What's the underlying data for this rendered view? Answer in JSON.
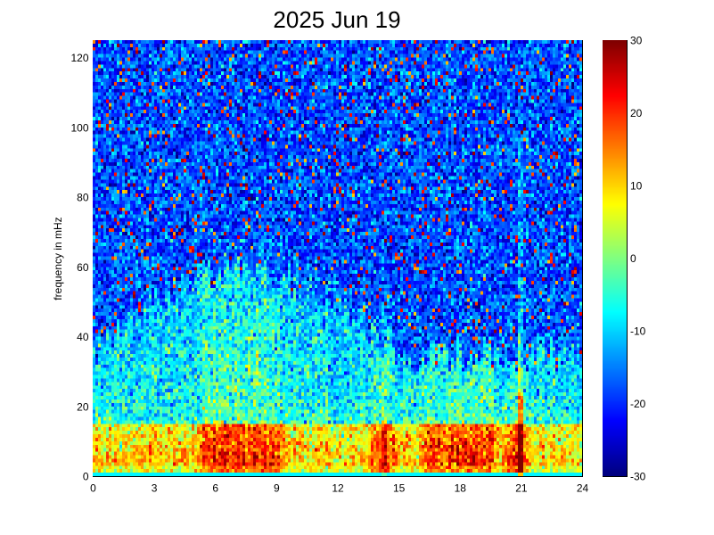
{
  "chart_data": {
    "type": "heatmap",
    "title": "2025 Jun 19",
    "xlabel": "",
    "ylabel": "frequency in mHz",
    "xlim": [
      0,
      24
    ],
    "ylim": [
      0,
      125
    ],
    "x_ticks": [
      "0",
      "3",
      "6",
      "9",
      "12",
      "15",
      "18",
      "21",
      "24"
    ],
    "y_ticks": [
      "0",
      "20",
      "40",
      "60",
      "80",
      "100",
      "120"
    ],
    "colorbar": {
      "range": [
        -30,
        30
      ],
      "ticks": [
        "30",
        "20",
        "10",
        "0",
        "-10",
        "-20",
        "-30"
      ],
      "colormap": "jet"
    },
    "grid": false,
    "pattern_summary": {
      "strong_power_band_mHz": [
        0,
        15
      ],
      "enhanced_power_band_mHz": [
        15,
        60
      ],
      "background_level": -18,
      "low_band_level": 12,
      "hot_intervals_hours": [
        [
          5.5,
          9
        ],
        [
          14,
          14.5
        ],
        [
          16.5,
          19.5
        ],
        [
          20.5,
          21
        ]
      ],
      "vertical_streaks_hours": [
        21,
        14.3
      ]
    }
  }
}
